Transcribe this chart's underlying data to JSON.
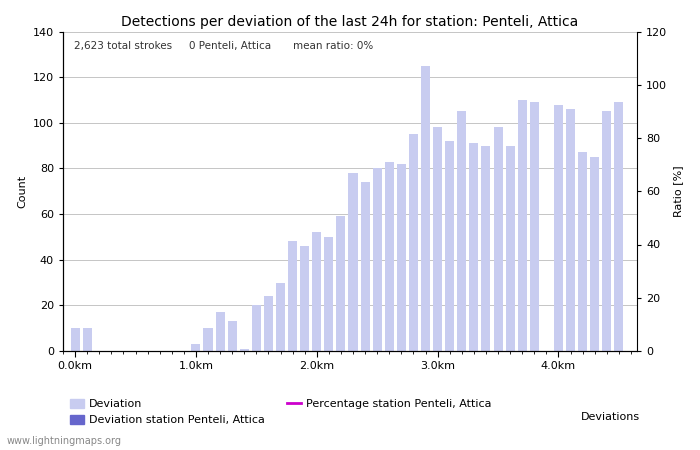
{
  "title": "Detections per deviation of the last 24h for station: Penteli, Attica",
  "subtitle_left": "2,623 total strokes",
  "subtitle_mid": "0 Penteli, Attica",
  "subtitle_right": "mean ratio: 0%",
  "xlabel": "Deviations",
  "ylabel_left": "Count",
  "ylabel_right": "Ratio [%]",
  "bar_width": 0.075,
  "bar_color_light": "#c8ccf0",
  "bar_color_dark": "#6666cc",
  "percentage_color": "#cc00cc",
  "background_color": "#ffffff",
  "grid_color": "#bbbbbb",
  "ylim_left": [
    0,
    140
  ],
  "ylim_right": [
    0,
    120
  ],
  "xlim": [
    -0.1,
    4.65
  ],
  "xtick_positions": [
    0.0,
    1.0,
    2.0,
    3.0,
    4.0
  ],
  "xtick_labels": [
    "0.0km",
    "1.0km",
    "2.0km",
    "3.0km",
    "4.0km"
  ],
  "ytick_left": [
    0,
    20,
    40,
    60,
    80,
    100,
    120,
    140
  ],
  "ytick_right": [
    0,
    20,
    40,
    60,
    80,
    100,
    120
  ],
  "watermark": "www.lightningmaps.org",
  "bar_positions": [
    0.0,
    0.1,
    0.2,
    0.3,
    0.4,
    0.5,
    0.6,
    0.7,
    0.8,
    0.9,
    1.0,
    1.1,
    1.2,
    1.3,
    1.4,
    1.5,
    1.6,
    1.7,
    1.8,
    1.9,
    2.0,
    2.1,
    2.2,
    2.3,
    2.4,
    2.5,
    2.6,
    2.7,
    2.8,
    2.9,
    3.0,
    3.1,
    3.2,
    3.3,
    3.4,
    3.5,
    3.6,
    3.7,
    3.8,
    4.0,
    4.1,
    4.2,
    4.3,
    4.4,
    4.5
  ],
  "bar_values": [
    10,
    10,
    0,
    0,
    0,
    0,
    0,
    0,
    0,
    0,
    3,
    10,
    17,
    13,
    1,
    20,
    24,
    30,
    48,
    46,
    52,
    50,
    59,
    78,
    74,
    80,
    83,
    82,
    95,
    125,
    98,
    92,
    105,
    91,
    90,
    98,
    90,
    110,
    109,
    108,
    106,
    87,
    85,
    105,
    109
  ],
  "legend_items": [
    {
      "label": "Deviation",
      "color": "#c8ccf0"
    },
    {
      "label": "Deviation station Penteli, Attica",
      "color": "#6666cc"
    },
    {
      "label": "Percentage station Penteli, Attica",
      "color": "#cc00cc"
    }
  ]
}
